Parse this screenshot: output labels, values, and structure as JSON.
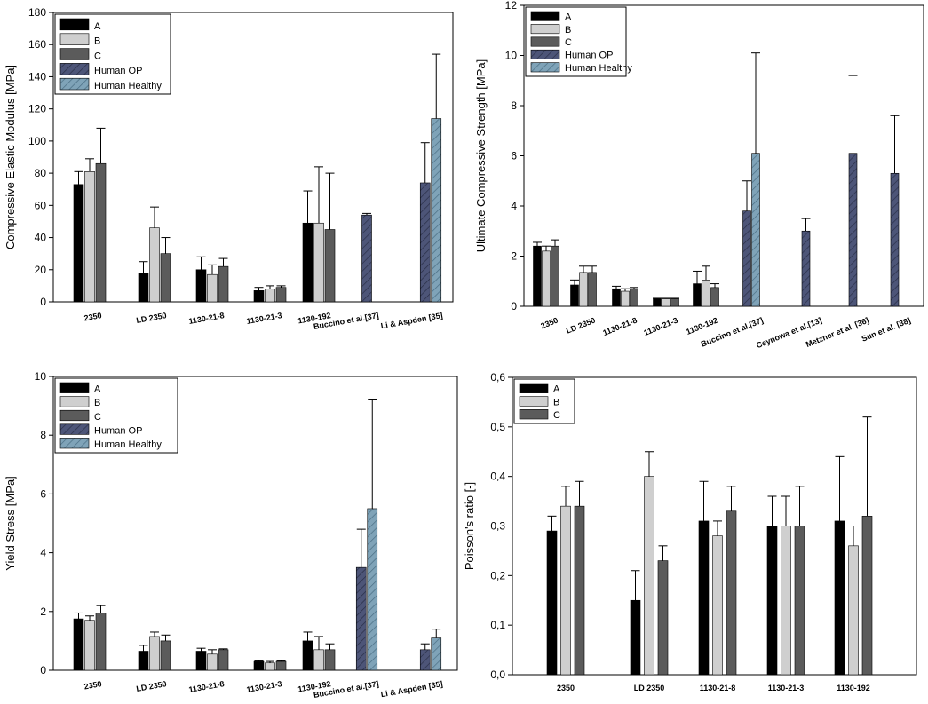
{
  "colors": {
    "A": "#000000",
    "B": "#cfcfcf",
    "C": "#5b5b5b",
    "Human OP": "#4d5578",
    "Human Healthy": "#7fa3b8"
  },
  "chart_data": [
    {
      "id": "tl",
      "type": "bar",
      "ylabel": "Compressive Elastic Modulus [MPa]",
      "ylim": [
        0,
        180
      ],
      "yticks": [
        0,
        20,
        40,
        60,
        80,
        100,
        120,
        140,
        160,
        180
      ],
      "ytick_labels": [
        "0",
        "20",
        "40",
        "60",
        "80",
        "100",
        "120",
        "140",
        "160",
        "180"
      ],
      "categories": [
        "2350",
        "LD 2350",
        "1130-21-8",
        "1130-21-3",
        "1130-192",
        "Buccino et al.[37]",
        "Li & Aspden [35]"
      ],
      "legend": [
        "A",
        "B",
        "C",
        "Human OP",
        "Human Healthy"
      ],
      "bars": [
        {
          "category": "2350",
          "series": "A",
          "value": 73,
          "error": 8
        },
        {
          "category": "2350",
          "series": "B",
          "value": 81,
          "error": 8
        },
        {
          "category": "2350",
          "series": "C",
          "value": 86,
          "error": 22
        },
        {
          "category": "LD 2350",
          "series": "A",
          "value": 18,
          "error": 7
        },
        {
          "category": "LD 2350",
          "series": "B",
          "value": 46,
          "error": 13
        },
        {
          "category": "LD 2350",
          "series": "C",
          "value": 30,
          "error": 10
        },
        {
          "category": "1130-21-8",
          "series": "A",
          "value": 20,
          "error": 8
        },
        {
          "category": "1130-21-8",
          "series": "B",
          "value": 17,
          "error": 6
        },
        {
          "category": "1130-21-8",
          "series": "C",
          "value": 22,
          "error": 5
        },
        {
          "category": "1130-21-3",
          "series": "A",
          "value": 7,
          "error": 2
        },
        {
          "category": "1130-21-3",
          "series": "B",
          "value": 8,
          "error": 2
        },
        {
          "category": "1130-21-3",
          "series": "C",
          "value": 9,
          "error": 1
        },
        {
          "category": "1130-192",
          "series": "A",
          "value": 49,
          "error": 20
        },
        {
          "category": "1130-192",
          "series": "B",
          "value": 49,
          "error": 35
        },
        {
          "category": "1130-192",
          "series": "C",
          "value": 45,
          "error": 35
        },
        {
          "category": "Buccino et al.[37]",
          "series": "Human OP",
          "value": 54,
          "error": 1
        },
        {
          "category": "Li & Aspden [35]",
          "series": "Human OP",
          "value": 74,
          "error": 25
        },
        {
          "category": "Li & Aspden [35]",
          "series": "Human Healthy",
          "value": 114,
          "error": 40
        }
      ]
    },
    {
      "id": "tr",
      "type": "bar",
      "ylabel": "Ultimate Compressive Strength [MPa]",
      "ylim": [
        0,
        12
      ],
      "yticks": [
        0,
        2,
        4,
        6,
        8,
        10,
        12
      ],
      "ytick_labels": [
        "0",
        "2",
        "4",
        "6",
        "8",
        "10",
        "12"
      ],
      "categories": [
        "2350",
        "LD 2350",
        "1130-21-8",
        "1130-21-3",
        "1130-192",
        "Buccino et al.[37]",
        "Ceynowa et al.[13]",
        "Metzner et al. [36]",
        "Sun et al. [38]"
      ],
      "legend": [
        "A",
        "B",
        "C",
        "Human OP",
        "Human Healthy"
      ],
      "bars": [
        {
          "category": "2350",
          "series": "A",
          "value": 2.4,
          "error": 0.15
        },
        {
          "category": "2350",
          "series": "B",
          "value": 2.2,
          "error": 0.2
        },
        {
          "category": "2350",
          "series": "C",
          "value": 2.4,
          "error": 0.25
        },
        {
          "category": "LD 2350",
          "series": "A",
          "value": 0.85,
          "error": 0.2
        },
        {
          "category": "LD 2350",
          "series": "B",
          "value": 1.35,
          "error": 0.25
        },
        {
          "category": "LD 2350",
          "series": "C",
          "value": 1.35,
          "error": 0.25
        },
        {
          "category": "1130-21-8",
          "series": "A",
          "value": 0.7,
          "error": 0.1
        },
        {
          "category": "1130-21-8",
          "series": "B",
          "value": 0.6,
          "error": 0.1
        },
        {
          "category": "1130-21-8",
          "series": "C",
          "value": 0.7,
          "error": 0.05
        },
        {
          "category": "1130-21-3",
          "series": "A",
          "value": 0.3,
          "error": 0.02
        },
        {
          "category": "1130-21-3",
          "series": "B",
          "value": 0.3,
          "error": 0.02
        },
        {
          "category": "1130-21-3",
          "series": "C",
          "value": 0.3,
          "error": 0.02
        },
        {
          "category": "1130-192",
          "series": "A",
          "value": 0.9,
          "error": 0.5
        },
        {
          "category": "1130-192",
          "series": "B",
          "value": 1.05,
          "error": 0.55
        },
        {
          "category": "1130-192",
          "series": "C",
          "value": 0.75,
          "error": 0.15
        },
        {
          "category": "Buccino et al.[37]",
          "series": "Human OP",
          "value": 3.8,
          "error": 1.2
        },
        {
          "category": "Buccino et al.[37]",
          "series": "Human Healthy",
          "value": 6.1,
          "error": 4.0
        },
        {
          "category": "Ceynowa et al.[13]",
          "series": "Human OP",
          "value": 3.0,
          "error": 0.5
        },
        {
          "category": "Metzner et al. [36]",
          "series": "Human OP",
          "value": 6.1,
          "error": 3.1
        },
        {
          "category": "Sun et al. [38]",
          "series": "Human OP",
          "value": 5.3,
          "error": 2.3
        }
      ]
    },
    {
      "id": "bl",
      "type": "bar",
      "ylabel": "Yield Stress [MPa]",
      "ylim": [
        0,
        10
      ],
      "yticks": [
        0,
        2,
        4,
        6,
        8,
        10
      ],
      "ytick_labels": [
        "0",
        "2",
        "4",
        "6",
        "8",
        "10"
      ],
      "categories": [
        "2350",
        "LD 2350",
        "1130-21-8",
        "1130-21-3",
        "1130-192",
        "Buccino et al.[37]",
        "Li & Aspden [35]"
      ],
      "legend": [
        "A",
        "B",
        "C",
        "Human OP",
        "Human Healthy"
      ],
      "bars": [
        {
          "category": "2350",
          "series": "A",
          "value": 1.75,
          "error": 0.2
        },
        {
          "category": "2350",
          "series": "B",
          "value": 1.7,
          "error": 0.15
        },
        {
          "category": "2350",
          "series": "C",
          "value": 1.95,
          "error": 0.25
        },
        {
          "category": "LD 2350",
          "series": "A",
          "value": 0.65,
          "error": 0.2
        },
        {
          "category": "LD 2350",
          "series": "B",
          "value": 1.15,
          "error": 0.15
        },
        {
          "category": "LD 2350",
          "series": "C",
          "value": 1.0,
          "error": 0.2
        },
        {
          "category": "1130-21-8",
          "series": "A",
          "value": 0.65,
          "error": 0.1
        },
        {
          "category": "1130-21-8",
          "series": "B",
          "value": 0.55,
          "error": 0.15
        },
        {
          "category": "1130-21-8",
          "series": "C",
          "value": 0.7,
          "error": 0.03
        },
        {
          "category": "1130-21-3",
          "series": "A",
          "value": 0.3,
          "error": 0.02
        },
        {
          "category": "1130-21-3",
          "series": "B",
          "value": 0.25,
          "error": 0.05
        },
        {
          "category": "1130-21-3",
          "series": "C",
          "value": 0.3,
          "error": 0.02
        },
        {
          "category": "1130-192",
          "series": "A",
          "value": 1.0,
          "error": 0.3
        },
        {
          "category": "1130-192",
          "series": "B",
          "value": 0.7,
          "error": 0.45
        },
        {
          "category": "1130-192",
          "series": "C",
          "value": 0.7,
          "error": 0.2
        },
        {
          "category": "Buccino et al.[37]",
          "series": "Human OP",
          "value": 3.5,
          "error": 1.3
        },
        {
          "category": "Buccino et al.[37]",
          "series": "Human Healthy",
          "value": 5.5,
          "error": 3.7
        },
        {
          "category": "Li & Aspden [35]",
          "series": "Human OP",
          "value": 0.7,
          "error": 0.2
        },
        {
          "category": "Li & Aspden [35]",
          "series": "Human Healthy",
          "value": 1.1,
          "error": 0.3
        }
      ]
    },
    {
      "id": "br",
      "type": "bar",
      "ylabel": "Poisson's ratio [-]",
      "ylim": [
        0,
        0.6
      ],
      "yticks": [
        0,
        0.1,
        0.2,
        0.3,
        0.4,
        0.5,
        0.6
      ],
      "ytick_labels": [
        "0,0",
        "0,1",
        "0,2",
        "0,3",
        "0,4",
        "0,5",
        "0,6"
      ],
      "categories": [
        "2350",
        "LD 2350",
        "1130-21-8",
        "1130-21-3",
        "1130-192"
      ],
      "legend": [
        "A",
        "B",
        "C"
      ],
      "bars": [
        {
          "category": "2350",
          "series": "A",
          "value": 0.29,
          "error": 0.03
        },
        {
          "category": "2350",
          "series": "B",
          "value": 0.34,
          "error": 0.04
        },
        {
          "category": "2350",
          "series": "C",
          "value": 0.34,
          "error": 0.05
        },
        {
          "category": "LD 2350",
          "series": "A",
          "value": 0.15,
          "error": 0.06
        },
        {
          "category": "LD 2350",
          "series": "B",
          "value": 0.4,
          "error": 0.05
        },
        {
          "category": "LD 2350",
          "series": "C",
          "value": 0.23,
          "error": 0.03
        },
        {
          "category": "1130-21-8",
          "series": "A",
          "value": 0.31,
          "error": 0.08
        },
        {
          "category": "1130-21-8",
          "series": "B",
          "value": 0.28,
          "error": 0.03
        },
        {
          "category": "1130-21-8",
          "series": "C",
          "value": 0.33,
          "error": 0.05
        },
        {
          "category": "1130-21-3",
          "series": "A",
          "value": 0.3,
          "error": 0.06
        },
        {
          "category": "1130-21-3",
          "series": "B",
          "value": 0.3,
          "error": 0.06
        },
        {
          "category": "1130-21-3",
          "series": "C",
          "value": 0.3,
          "error": 0.08
        },
        {
          "category": "1130-192",
          "series": "A",
          "value": 0.31,
          "error": 0.13
        },
        {
          "category": "1130-192",
          "series": "B",
          "value": 0.26,
          "error": 0.04
        },
        {
          "category": "1130-192",
          "series": "C",
          "value": 0.32,
          "error": 0.2
        }
      ]
    }
  ]
}
